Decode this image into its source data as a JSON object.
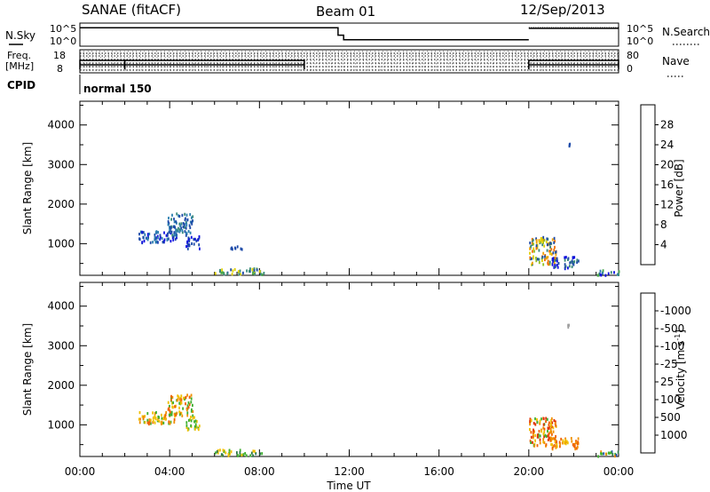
{
  "header": {
    "station": "SANAE (fitACF)",
    "beam": "Beam 01",
    "date": "12/Sep/2013"
  },
  "chart_data": [
    {
      "type": "line",
      "name": "noise-panel",
      "left_label": "N.Sky",
      "right_label": "N.Search",
      "left_ticks": [
        "10^5",
        "10^0"
      ],
      "right_ticks": [
        "10^5",
        "10^0"
      ],
      "series": [
        {
          "name": "N.Sky",
          "style": "solid",
          "x": [
            0,
            11.5,
            11.5,
            11.75,
            11.75,
            20.0
          ],
          "y": [
            4.6,
            4.6,
            2.0,
            2.0,
            0.4,
            0.4
          ]
        },
        {
          "name": "N.Sky (late)",
          "style": "solid",
          "x": [
            20.0,
            24.0
          ],
          "y": [
            4.4,
            4.4
          ]
        }
      ]
    },
    {
      "type": "line",
      "name": "freq-panel",
      "left_label": "Freq.",
      "left_unit": "[MHz]",
      "left_ticks": [
        "18",
        "8"
      ],
      "right_label": "Nave",
      "right_ticks": [
        "80",
        "0"
      ],
      "series": [
        {
          "name": "Freq.",
          "style": "solid",
          "x": [
            0,
            2.0,
            2.0,
            10.0,
            10.0
          ],
          "y": [
            10.2,
            10.2,
            10.2,
            10.2,
            10.2
          ]
        },
        {
          "name": "Freq. (late)",
          "style": "solid",
          "x": [
            20.0,
            24.0
          ],
          "y": [
            10.2,
            10.2
          ]
        }
      ]
    },
    {
      "type": "table",
      "name": "cpid-row",
      "label": "CPID",
      "value": "normal 150"
    },
    {
      "type": "heatmap",
      "name": "power",
      "ylabel": "Slant Range [km]",
      "ylim": [
        200,
        4600
      ],
      "yticks": [
        1000,
        2000,
        3000,
        4000
      ],
      "colorbar_label": "Power [dB]",
      "colorbar_ticks": [
        "4",
        "8",
        "12",
        "16",
        "20",
        "24",
        "28"
      ],
      "colors": [
        "#1010e0",
        "#1d4aa8",
        "#2c7fb0",
        "#3a8a7a",
        "#4aa84a",
        "#90c020",
        "#e0d000",
        "#f0a000",
        "#f07000",
        "#e03000",
        "#d00000"
      ],
      "clusters": [
        {
          "x": [
            2.6,
            4.3
          ],
          "y": [
            1050,
            1350
          ],
          "c": [
            0,
            1,
            2
          ]
        },
        {
          "x": [
            3.9,
            5.0
          ],
          "y": [
            1250,
            1800
          ],
          "c": [
            1,
            2,
            3
          ]
        },
        {
          "x": [
            4.7,
            5.3
          ],
          "y": [
            900,
            1250
          ],
          "c": [
            0,
            1
          ]
        },
        {
          "x": [
            6.0,
            8.2
          ],
          "y": [
            250,
            400
          ],
          "c": [
            3,
            4,
            6,
            1
          ]
        },
        {
          "x": [
            6.7,
            7.2
          ],
          "y": [
            880,
            1000
          ],
          "c": [
            1
          ]
        },
        {
          "x": [
            20.0,
            21.2
          ],
          "y": [
            500,
            1200
          ],
          "c": [
            1,
            3,
            5,
            6,
            7,
            8
          ]
        },
        {
          "x": [
            21.0,
            22.2
          ],
          "y": [
            400,
            700
          ],
          "c": [
            0,
            1,
            3
          ]
        },
        {
          "x": [
            23.0,
            24.0
          ],
          "y": [
            230,
            360
          ],
          "c": [
            0,
            2,
            3,
            4
          ]
        },
        {
          "x": [
            21.7,
            21.8
          ],
          "y": [
            3500,
            3560
          ],
          "c": [
            1
          ]
        }
      ]
    },
    {
      "type": "heatmap",
      "name": "velocity",
      "ylabel": "Slant Range [km]",
      "ylim": [
        200,
        4600
      ],
      "yticks": [
        1000,
        2000,
        3000,
        4000
      ],
      "xlabel": "Time UT",
      "xticks": [
        "00:00",
        "04:00",
        "08:00",
        "12:00",
        "16:00",
        "20:00",
        "00:00"
      ],
      "xlim": [
        0,
        24
      ],
      "colorbar_label": "Velocity [m s-1]",
      "colorbar_ticks": [
        "1000",
        "500",
        "100",
        "25",
        "-25",
        "-100",
        "-500",
        "-1000"
      ],
      "colors": [
        "#1020c8",
        "#1d4aa8",
        "#2f7a4a",
        "#40b030",
        "#a0a0a0",
        "#f0c000",
        "#f09000",
        "#f06000",
        "#e03000",
        "#e00000"
      ],
      "clusters": [
        {
          "x": [
            2.6,
            4.3
          ],
          "y": [
            1050,
            1350
          ],
          "c": [
            3,
            5,
            6,
            7
          ]
        },
        {
          "x": [
            3.9,
            5.0
          ],
          "y": [
            1250,
            1800
          ],
          "c": [
            5,
            6,
            7,
            3
          ]
        },
        {
          "x": [
            4.7,
            5.3
          ],
          "y": [
            900,
            1250
          ],
          "c": [
            3,
            5
          ]
        },
        {
          "x": [
            6.0,
            8.2
          ],
          "y": [
            250,
            400
          ],
          "c": [
            3,
            2,
            5
          ]
        },
        {
          "x": [
            20.0,
            21.2
          ],
          "y": [
            500,
            1200
          ],
          "c": [
            6,
            7,
            8,
            5,
            3
          ]
        },
        {
          "x": [
            21.0,
            22.2
          ],
          "y": [
            400,
            700
          ],
          "c": [
            6,
            7,
            5
          ]
        },
        {
          "x": [
            23.0,
            24.0
          ],
          "y": [
            230,
            360
          ],
          "c": [
            1,
            2,
            3,
            6
          ]
        },
        {
          "x": [
            21.7,
            21.8
          ],
          "y": [
            3500,
            3560
          ],
          "c": [
            4
          ]
        }
      ]
    }
  ]
}
